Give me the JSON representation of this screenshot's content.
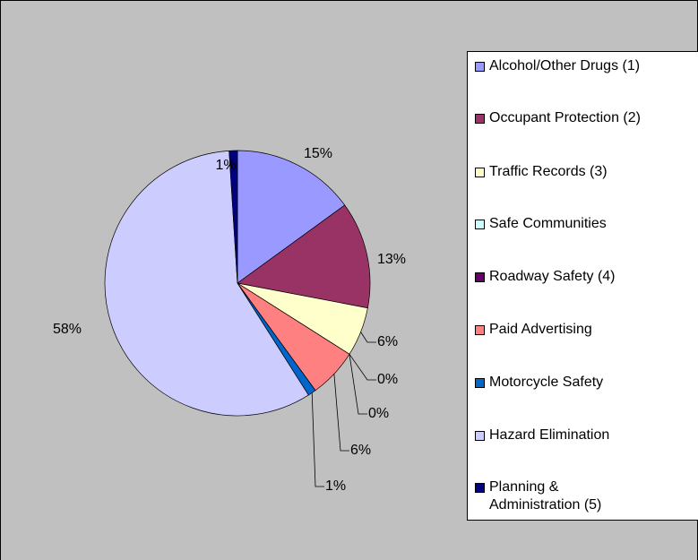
{
  "chart_data": {
    "type": "pie",
    "categories": [
      "Alcohol/Other Drugs (1)",
      "Occupant Protection (2)",
      "Traffic Records (3)",
      "Safe Communities",
      "Roadway Safety (4)",
      "Paid Advertising",
      "Motorcycle Safety",
      "Hazard Elimination",
      "Planning & Administration (5)"
    ],
    "values": [
      15,
      13,
      6,
      0,
      0,
      6,
      1,
      58,
      1
    ],
    "value_labels": [
      "15%",
      "13%",
      "6%",
      "0%",
      "0%",
      "6%",
      "1%",
      "58%",
      "1%"
    ],
    "colors": [
      "#9999ff",
      "#993366",
      "#ffffcc",
      "#ccffff",
      "#660066",
      "#ff8080",
      "#0066cc",
      "#ccccff",
      "#000080"
    ]
  }
}
